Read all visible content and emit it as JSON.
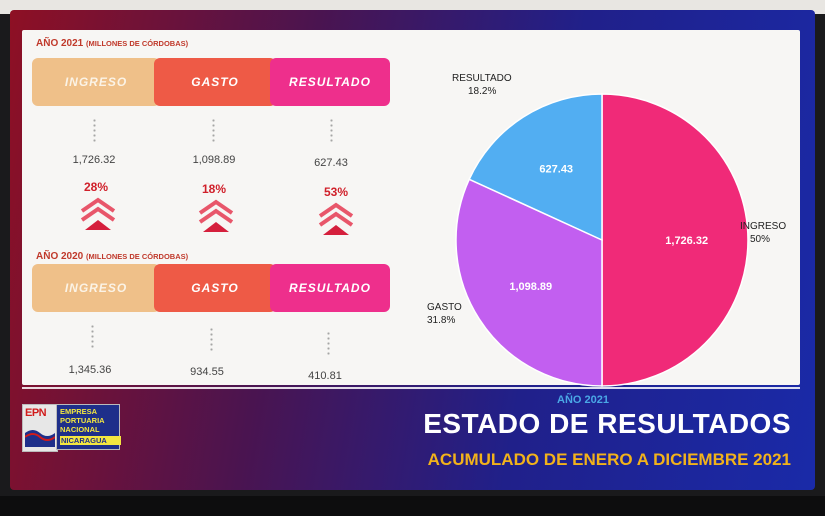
{
  "year2021": {
    "label": "AÑO 2021",
    "sub": "(MILLONES DE CÓRDOBAS)",
    "headers": [
      "INGRESO",
      "GASTO",
      "RESULTADO"
    ],
    "values": [
      "1,726.32",
      "1,098.89",
      "627.43"
    ],
    "growth": [
      "28%",
      "18%",
      "53%"
    ]
  },
  "year2020": {
    "label": "AÑO 2020",
    "sub": "(MILLONES DE CÓRDOBAS)",
    "headers": [
      "INGRESO",
      "GASTO",
      "RESULTADO"
    ],
    "values": [
      "1,345.36",
      "934.55",
      "410.81"
    ]
  },
  "colors": {
    "ingreso_bar": "#efc089",
    "gasto_bar": "#ee5a46",
    "resultado_bar": "#ee2f8c",
    "pie_ingreso": "#f02a78",
    "pie_gasto": "#c25ff0",
    "pie_resultado": "#52aef2"
  },
  "chart_data": {
    "type": "pie",
    "title": "AÑO 2021",
    "slices": [
      {
        "name": "INGRESO",
        "value": 1726.32,
        "value_label": "1,726.32",
        "percent_label": "50%",
        "color": "#f02a78"
      },
      {
        "name": "GASTO",
        "value": 1098.89,
        "value_label": "1,098.89",
        "percent_label": "31.8%",
        "color": "#c25ff0"
      },
      {
        "name": "RESULTADO",
        "value": 627.43,
        "value_label": "627.43",
        "percent_label": "18.2%",
        "color": "#52aef2"
      }
    ]
  },
  "footer": {
    "logo_mark": "EPN",
    "logo_lines": [
      "EMPRESA",
      "PORTUARIA",
      "NACIONAL"
    ],
    "logo_country": "NICARAGUA",
    "title": "ESTADO DE RESULTADOS",
    "subtitle": "ACUMULADO DE ENERO A DICIEMBRE 2021"
  }
}
